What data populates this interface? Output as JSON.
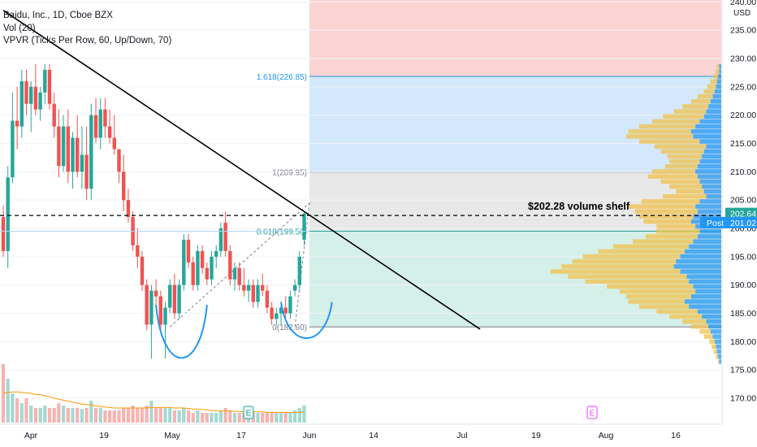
{
  "header": {
    "symbol_line": "Baidu, Inc., 1D, Cboe BZX",
    "vol_line": "Vol (20)",
    "vpvr_line": "VPVR (Ticks Per Row, 60, Up/Down, 70)"
  },
  "price_axis": {
    "currency": "USD",
    "ticks": [
      "240.00",
      "235.00",
      "230.00",
      "225.00",
      "220.00",
      "215.00",
      "210.00",
      "205.00",
      "200.00",
      "195.00",
      "190.00",
      "185.00",
      "180.00",
      "175.00",
      "170.00"
    ],
    "last_price_label": "202.64",
    "post_badge": "Post",
    "post_price_label": "201.02"
  },
  "colors": {
    "up": "#26a69a",
    "down": "#ef5350",
    "vp_up": "#2196f3",
    "vp_down": "#f0c24b",
    "fib_top": "#fcd4d3",
    "fib_blue": "#d3e8fb",
    "fib_gray": "#e8e8e8",
    "fib_green": "#d5efe9",
    "cup_stroke": "#2196f3"
  },
  "fib_levels": [
    {
      "label": "1.618(226.85)",
      "price": 226.85
    },
    {
      "label": "1(209.95)",
      "price": 209.95
    },
    {
      "label": "0.618(199.50)",
      "price": 199.5
    },
    {
      "label": "0(182.60)",
      "price": 182.6
    }
  ],
  "annotation": {
    "text": "$202.28 volume shelf",
    "price": 202.28
  },
  "event_markers": [
    {
      "letter": "E",
      "date_label": "May 24",
      "style": "earnings-reported"
    },
    {
      "letter": "E",
      "date_label": "Aug 3",
      "style": "earnings-upcoming"
    }
  ],
  "chart_data": {
    "type": "candlestick",
    "title": "Baidu, Inc., 1D, Cboe BZX",
    "ylabel": "USD",
    "ylim": [
      166,
      241
    ],
    "x_tick_labels": [
      "Apr",
      "19",
      "May",
      "17",
      "Jun",
      "14",
      "Jul",
      "19",
      "Aug",
      "16"
    ],
    "candles": [
      {
        "o": 202,
        "h": 204,
        "l": 195,
        "c": 196
      },
      {
        "o": 196,
        "h": 211,
        "l": 193,
        "c": 209
      },
      {
        "o": 209,
        "h": 224,
        "l": 208,
        "c": 219
      },
      {
        "o": 219,
        "h": 225,
        "l": 214,
        "c": 218
      },
      {
        "o": 218,
        "h": 228,
        "l": 216,
        "c": 226
      },
      {
        "o": 226,
        "h": 228,
        "l": 220,
        "c": 222
      },
      {
        "o": 222,
        "h": 226,
        "l": 217,
        "c": 225
      },
      {
        "o": 225,
        "h": 229,
        "l": 220,
        "c": 221
      },
      {
        "o": 221,
        "h": 225,
        "l": 219,
        "c": 224
      },
      {
        "o": 224,
        "h": 229,
        "l": 222,
        "c": 228
      },
      {
        "o": 228,
        "h": 229,
        "l": 221,
        "c": 222
      },
      {
        "o": 222,
        "h": 224,
        "l": 216,
        "c": 218
      },
      {
        "o": 218,
        "h": 221,
        "l": 209,
        "c": 211
      },
      {
        "o": 211,
        "h": 220,
        "l": 210,
        "c": 218
      },
      {
        "o": 218,
        "h": 221,
        "l": 208,
        "c": 210
      },
      {
        "o": 210,
        "h": 217,
        "l": 207,
        "c": 216
      },
      {
        "o": 216,
        "h": 220,
        "l": 209,
        "c": 210
      },
      {
        "o": 210,
        "h": 218,
        "l": 207,
        "c": 213
      },
      {
        "o": 213,
        "h": 218,
        "l": 205,
        "c": 207
      },
      {
        "o": 207,
        "h": 222,
        "l": 205,
        "c": 220
      },
      {
        "o": 220,
        "h": 223,
        "l": 215,
        "c": 216
      },
      {
        "o": 216,
        "h": 223,
        "l": 214,
        "c": 221
      },
      {
        "o": 221,
        "h": 223,
        "l": 216,
        "c": 218
      },
      {
        "o": 218,
        "h": 221,
        "l": 215,
        "c": 216
      },
      {
        "o": 216,
        "h": 220,
        "l": 213,
        "c": 214
      },
      {
        "o": 214,
        "h": 214,
        "l": 208,
        "c": 210
      },
      {
        "o": 210,
        "h": 213,
        "l": 203,
        "c": 205
      },
      {
        "o": 205,
        "h": 207,
        "l": 201,
        "c": 202
      },
      {
        "o": 202,
        "h": 203,
        "l": 196,
        "c": 197
      },
      {
        "o": 197,
        "h": 200,
        "l": 193,
        "c": 195
      },
      {
        "o": 195,
        "h": 196,
        "l": 189,
        "c": 190
      },
      {
        "o": 190,
        "h": 191,
        "l": 182,
        "c": 183
      },
      {
        "o": 183,
        "h": 190,
        "l": 177,
        "c": 189
      },
      {
        "o": 189,
        "h": 191,
        "l": 186,
        "c": 188
      },
      {
        "o": 188,
        "h": 189,
        "l": 182,
        "c": 183
      },
      {
        "o": 183,
        "h": 187,
        "l": 177,
        "c": 186
      },
      {
        "o": 186,
        "h": 191,
        "l": 185,
        "c": 190
      },
      {
        "o": 190,
        "h": 192,
        "l": 184,
        "c": 185
      },
      {
        "o": 185,
        "h": 191,
        "l": 184,
        "c": 190
      },
      {
        "o": 190,
        "h": 199,
        "l": 189,
        "c": 198
      },
      {
        "o": 198,
        "h": 199,
        "l": 193,
        "c": 194
      },
      {
        "o": 194,
        "h": 195,
        "l": 189,
        "c": 190
      },
      {
        "o": 190,
        "h": 197,
        "l": 189,
        "c": 196
      },
      {
        "o": 196,
        "h": 197,
        "l": 192,
        "c": 193
      },
      {
        "o": 193,
        "h": 194,
        "l": 190,
        "c": 191
      },
      {
        "o": 191,
        "h": 196,
        "l": 190,
        "c": 195
      },
      {
        "o": 195,
        "h": 197,
        "l": 193,
        "c": 196
      },
      {
        "o": 196,
        "h": 201,
        "l": 195,
        "c": 200
      },
      {
        "o": 201,
        "h": 203,
        "l": 195,
        "c": 196
      },
      {
        "o": 196,
        "h": 197,
        "l": 190,
        "c": 191
      },
      {
        "o": 191,
        "h": 194,
        "l": 189,
        "c": 193
      },
      {
        "o": 193,
        "h": 194,
        "l": 189,
        "c": 190
      },
      {
        "o": 190,
        "h": 193,
        "l": 188,
        "c": 189
      },
      {
        "o": 189,
        "h": 191,
        "l": 187,
        "c": 190
      },
      {
        "o": 190,
        "h": 191,
        "l": 186,
        "c": 187
      },
      {
        "o": 187,
        "h": 191,
        "l": 186,
        "c": 190
      },
      {
        "o": 190,
        "h": 192,
        "l": 188,
        "c": 189
      },
      {
        "o": 189,
        "h": 190,
        "l": 185,
        "c": 186
      },
      {
        "o": 186,
        "h": 187,
        "l": 183,
        "c": 184
      },
      {
        "o": 184,
        "h": 186,
        "l": 183,
        "c": 185
      },
      {
        "o": 185,
        "h": 187,
        "l": 183,
        "c": 186
      },
      {
        "o": 186,
        "h": 188,
        "l": 184,
        "c": 185
      },
      {
        "o": 185,
        "h": 189,
        "l": 184,
        "c": 188
      },
      {
        "o": 189,
        "h": 191,
        "l": 188,
        "c": 190
      },
      {
        "o": 190,
        "h": 196,
        "l": 189,
        "c": 195
      },
      {
        "o": 198,
        "h": 203,
        "l": 197,
        "c": 202.6
      }
    ],
    "volume": [
      1.2,
      0.9,
      0.6,
      0.5,
      0.4,
      0.5,
      0.35,
      0.3,
      0.3,
      0.35,
      0.3,
      0.3,
      0.4,
      0.35,
      0.3,
      0.3,
      0.3,
      0.28,
      0.3,
      0.45,
      0.3,
      0.3,
      0.25,
      0.25,
      0.25,
      0.25,
      0.3,
      0.3,
      0.35,
      0.3,
      0.3,
      0.35,
      0.45,
      0.3,
      0.3,
      0.3,
      0.3,
      0.25,
      0.25,
      0.3,
      0.25,
      0.2,
      0.25,
      0.2,
      0.2,
      0.2,
      0.2,
      0.25,
      0.3,
      0.25,
      0.2,
      0.2,
      0.2,
      0.2,
      0.2,
      0.2,
      0.2,
      0.2,
      0.2,
      0.2,
      0.2,
      0.2,
      0.2,
      0.25,
      0.3,
      0.35
    ],
    "volume_ma": [
      0.6,
      0.62,
      0.63,
      0.63,
      0.62,
      0.61,
      0.6,
      0.58,
      0.57,
      0.55,
      0.53,
      0.5,
      0.48,
      0.46,
      0.44,
      0.42,
      0.4,
      0.38,
      0.37,
      0.36,
      0.34,
      0.33,
      0.32,
      0.31,
      0.3,
      0.3,
      0.3,
      0.3,
      0.3,
      0.3,
      0.3,
      0.3,
      0.31,
      0.31,
      0.31,
      0.31,
      0.31,
      0.3,
      0.3,
      0.3,
      0.29,
      0.28,
      0.28,
      0.27,
      0.26,
      0.25,
      0.24,
      0.24,
      0.24,
      0.24,
      0.23,
      0.23,
      0.22,
      0.22,
      0.22,
      0.22,
      0.22,
      0.21,
      0.21,
      0.21,
      0.21,
      0.21,
      0.21,
      0.21,
      0.21,
      0.22
    ],
    "volume_profile": {
      "price_min": 176,
      "price_max": 229,
      "up": [
        2,
        3,
        4,
        5,
        6,
        8,
        10,
        12,
        14,
        18,
        22,
        30,
        34,
        28,
        24,
        26,
        30,
        32,
        38,
        44,
        42,
        38,
        34,
        30,
        26,
        22,
        20,
        24,
        28,
        26,
        22,
        24,
        20,
        14,
        16,
        18,
        20,
        22,
        24,
        22,
        20,
        18,
        16,
        14,
        20,
        26,
        28,
        24,
        20,
        16,
        14,
        12,
        10,
        8,
        6,
        5,
        4,
        3,
        2,
        2
      ],
      "down": [
        1,
        2,
        3,
        4,
        5,
        8,
        10,
        16,
        22,
        30,
        38,
        46,
        52,
        60,
        70,
        80,
        96,
        110,
        120,
        104,
        96,
        90,
        80,
        70,
        56,
        48,
        40,
        36,
        44,
        50,
        58,
        62,
        54,
        40,
        26,
        30,
        36,
        46,
        40,
        30,
        28,
        32,
        40,
        48,
        56,
        62,
        58,
        52,
        44,
        38,
        30,
        24,
        18,
        14,
        10,
        8,
        6,
        4,
        3,
        2
      ]
    },
    "drawings": {
      "trendline": {
        "from_bar": 0,
        "from_price": 238.5,
        "to_bar": 103,
        "to_price": 182.2
      },
      "cups": [
        {
          "from_bar": 33,
          "bottom_bar": 38,
          "to_bar": 44,
          "top_price": 186.5,
          "bottom_price": 176
        },
        {
          "from_bar": 60,
          "bottom_bar": 66,
          "to_bar": 71,
          "top_price": 187,
          "bottom_price": 180.5
        }
      ]
    }
  }
}
